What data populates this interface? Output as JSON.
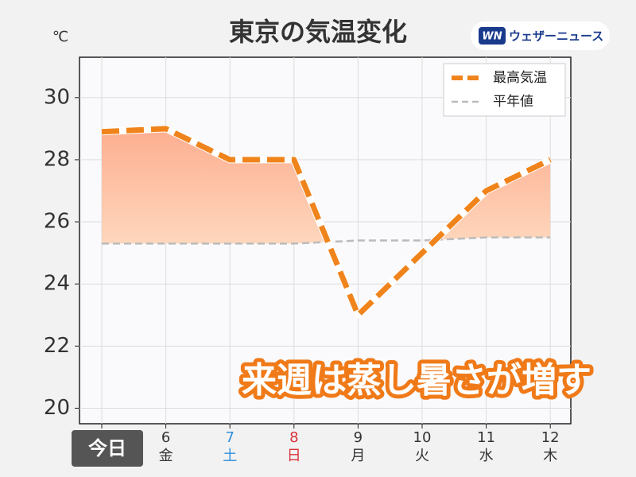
{
  "chart_data": {
    "type": "line",
    "title": "東京の気温変化",
    "y_unit": "℃",
    "logo": {
      "mark": "WN",
      "text": "ウェザーニュース"
    },
    "annotation": "来週は蒸し暑さが増す",
    "categories": [
      "今日",
      "6",
      "7",
      "8",
      "9",
      "10",
      "11",
      "12"
    ],
    "weekdays": [
      null,
      "金",
      "土",
      "日",
      "月",
      "火",
      "水",
      "木"
    ],
    "label_colors": [
      "#ffffff",
      "#333333",
      "#2f8fdc",
      "#d9303a",
      "#333333",
      "#333333",
      "#333333",
      "#333333"
    ],
    "series": [
      {
        "name": "最高気温",
        "color": "#f0841c",
        "values": [
          28.9,
          29.0,
          28.0,
          28.0,
          23.0,
          25.0,
          27.0,
          28.0
        ]
      },
      {
        "name": "平年値",
        "color": "#bbbbbb",
        "values": [
          25.3,
          25.3,
          25.3,
          25.3,
          25.4,
          25.4,
          25.5,
          25.5
        ]
      }
    ],
    "ylim": [
      19.5,
      31.3
    ],
    "yticks": [
      20,
      22,
      24,
      26,
      28,
      30
    ],
    "grid": true,
    "legend": "upper right"
  }
}
